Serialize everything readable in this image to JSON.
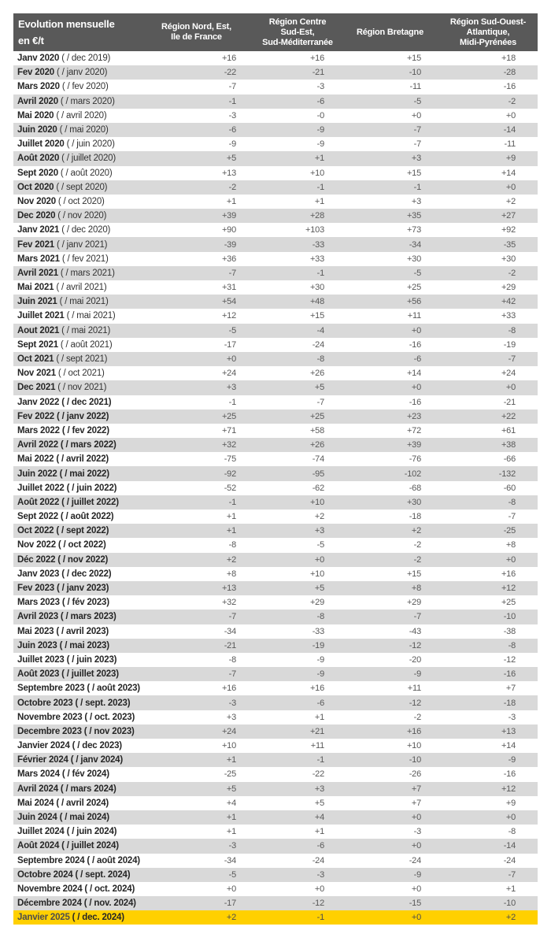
{
  "chart_data": {
    "type": "table",
    "title": "Evolution mensuelle en €/t",
    "corner_title": "Evolution mensuelle\nen €/t",
    "columns": [
      "Région Nord, Est,\nIle de France",
      "Région Centre\nSud-Est,\nSud-Méditerranée",
      "Région Bretagne",
      "Région Sud-Ouest-\nAtlantique,\nMidi-Pyrénées"
    ],
    "unit": "€/t",
    "rows": [
      {
        "month": "Janv 2020",
        "compare": "( / dec 2019)",
        "values": [
          "+16",
          "+16",
          "+15",
          "+18"
        ]
      },
      {
        "month": "Fev 2020",
        "compare": "( / janv 2020)",
        "values": [
          "-22",
          "-21",
          "-10",
          "-28"
        ]
      },
      {
        "month": "Mars 2020",
        "compare": "( / fev 2020)",
        "values": [
          "-7",
          "-3",
          "-11",
          "-16"
        ]
      },
      {
        "month": "Avril 2020",
        "compare": "( / mars 2020)",
        "values": [
          "-1",
          "-6",
          "-5",
          "-2"
        ]
      },
      {
        "month": "Mai 2020",
        "compare": "( / avril 2020)",
        "values": [
          "-3",
          "-0",
          "+0",
          "+0"
        ]
      },
      {
        "month": "Juin 2020",
        "compare": "( / mai 2020)",
        "values": [
          "-6",
          "-9",
          "-7",
          "-14"
        ]
      },
      {
        "month": "Juillet 2020",
        "compare": "( / juin 2020)",
        "values": [
          "-9",
          "-9",
          "-7",
          "-11"
        ]
      },
      {
        "month": "Août 2020",
        "compare": "( / juillet 2020)",
        "values": [
          "+5",
          "+1",
          "+3",
          "+9"
        ]
      },
      {
        "month": "Sept 2020",
        "compare": "( / août 2020)",
        "values": [
          "+13",
          "+10",
          "+15",
          "+14"
        ]
      },
      {
        "month": "Oct 2020",
        "compare": "( / sept 2020)",
        "values": [
          "-2",
          "-1",
          "-1",
          "+0"
        ]
      },
      {
        "month": "Nov 2020",
        "compare": "( / oct 2020)",
        "values": [
          "+1",
          "+1",
          "+3",
          "+2"
        ]
      },
      {
        "month": "Dec 2020",
        "compare": "( / nov 2020)",
        "values": [
          "+39",
          "+28",
          "+35",
          "+27"
        ]
      },
      {
        "month": "Janv 2021",
        "compare": "( / dec 2020)",
        "values": [
          "+90",
          "+103",
          "+73",
          "+92"
        ]
      },
      {
        "month": "Fev 2021",
        "compare": "( / janv 2021)",
        "values": [
          "-39",
          "-33",
          "-34",
          "-35"
        ]
      },
      {
        "month": "Mars 2021",
        "compare": "( / fev 2021)",
        "values": [
          "+36",
          "+33",
          "+30",
          "+30"
        ]
      },
      {
        "month": "Avril 2021",
        "compare": "( / mars 2021)",
        "values": [
          "-7",
          "-1",
          "-5",
          "-2"
        ]
      },
      {
        "month": "Mai 2021",
        "compare": "( / avril 2021)",
        "values": [
          "+31",
          "+30",
          "+25",
          "+29"
        ]
      },
      {
        "month": "Juin 2021",
        "compare": "( / mai 2021)",
        "values": [
          "+54",
          "+48",
          "+56",
          "+42"
        ]
      },
      {
        "month": "Juillet 2021",
        "compare": "( / mai 2021)",
        "values": [
          "+12",
          "+15",
          "+11",
          "+33"
        ]
      },
      {
        "month": "Aout 2021",
        "compare": "( / mai 2021)",
        "values": [
          "-5",
          "-4",
          "+0",
          "-8"
        ]
      },
      {
        "month": "Sept 2021",
        "compare": "( / août 2021)",
        "values": [
          "-17",
          "-24",
          "-16",
          "-19"
        ]
      },
      {
        "month": "Oct 2021",
        "compare": "( / sept 2021)",
        "values": [
          "+0",
          "-8",
          "-6",
          "-7"
        ]
      },
      {
        "month": "Nov 2021",
        "compare": "( / oct 2021)",
        "values": [
          "+24",
          "+26",
          "+14",
          "+24"
        ]
      },
      {
        "month": "Dec 2021",
        "compare": "( / nov 2021)",
        "values": [
          "+3",
          "+5",
          "+0",
          "+0"
        ]
      },
      {
        "month": "Janv 2022",
        "compare": "( / dec 2021)",
        "values": [
          "-1",
          "-7",
          "-16",
          "-21"
        ],
        "bold_full": true
      },
      {
        "month": "Fev 2022",
        "compare": "( / janv 2022)",
        "values": [
          "+25",
          "+25",
          "+23",
          "+22"
        ],
        "bold_full": true
      },
      {
        "month": "Mars 2022",
        "compare": "( / fev 2022)",
        "values": [
          "+71",
          "+58",
          "+72",
          "+61"
        ],
        "bold_full": true
      },
      {
        "month": "Avril 2022",
        "compare": "( / mars 2022)",
        "values": [
          "+32",
          "+26",
          "+39",
          "+38"
        ],
        "bold_full": true
      },
      {
        "month": "Mai 2022",
        "compare": "( / avril 2022)",
        "values": [
          "-75",
          "-74",
          "-76",
          "-66"
        ],
        "bold_full": true
      },
      {
        "month": "Juin 2022",
        "compare": "( / mai 2022)",
        "values": [
          "-92",
          "-95",
          "-102",
          "-132"
        ],
        "bold_full": true
      },
      {
        "month": "Juillet 2022",
        "compare": "( / juin 2022)",
        "values": [
          "-52",
          "-62",
          "-68",
          "-60"
        ],
        "bold_full": true
      },
      {
        "month": "Août 2022",
        "compare": "( / juillet 2022)",
        "values": [
          "-1",
          "+10",
          "+30",
          "-8"
        ],
        "bold_full": true
      },
      {
        "month": "Sept 2022",
        "compare": "( / août 2022)",
        "values": [
          "+1",
          "+2",
          "-18",
          "-7"
        ],
        "bold_full": true
      },
      {
        "month": "Oct 2022",
        "compare": "( / sept 2022)",
        "values": [
          "+1",
          "+3",
          "+2",
          "-25"
        ],
        "bold_full": true
      },
      {
        "month": "Nov 2022",
        "compare": "( / oct 2022)",
        "values": [
          "-8",
          "-5",
          "-2",
          "+8"
        ],
        "bold_full": true
      },
      {
        "month": "Déc 2022",
        "compare": "( / nov 2022)",
        "values": [
          "+2",
          "+0",
          "-2",
          "+0"
        ],
        "bold_full": true
      },
      {
        "month": "Janv 2023",
        "compare": "( / dec 2022)",
        "values": [
          "+8",
          "+10",
          "+15",
          "+16"
        ],
        "bold_full": true
      },
      {
        "month": "Fev 2023",
        "compare": "( / janv 2023)",
        "values": [
          "+13",
          "+5",
          "+8",
          "+12"
        ],
        "bold_full": true
      },
      {
        "month": "Mars 2023",
        "compare": "( / fév 2023)",
        "values": [
          "+32",
          "+29",
          "+29",
          "+25"
        ],
        "bold_full": true
      },
      {
        "month": "Avril 2023",
        "compare": "( / mars 2023)",
        "values": [
          "-7",
          "-8",
          "-7",
          "-10"
        ],
        "bold_full": true
      },
      {
        "month": "Mai 2023",
        "compare": "( / avril 2023)",
        "values": [
          "-34",
          "-33",
          "-43",
          "-38"
        ],
        "bold_full": true
      },
      {
        "month": "Juin 2023",
        "compare": "( / mai 2023)",
        "values": [
          "-21",
          "-19",
          "-12",
          "-8"
        ],
        "bold_full": true
      },
      {
        "month": "Juillet 2023",
        "compare": "( / juin 2023)",
        "values": [
          "-8",
          "-9",
          "-20",
          "-12"
        ],
        "bold_full": true
      },
      {
        "month": "Août 2023",
        "compare": "( / juillet 2023)",
        "values": [
          "-7",
          "-9",
          "-9",
          "-16"
        ],
        "bold_full": true
      },
      {
        "month": "Septembre 2023",
        "compare": "( / août 2023)",
        "values": [
          "+16",
          "+16",
          "+11",
          "+7"
        ],
        "bold_full": true
      },
      {
        "month": "Octobre 2023",
        "compare": "( / sept. 2023)",
        "values": [
          "-3",
          "-6",
          "-12",
          "-18"
        ],
        "bold_full": true
      },
      {
        "month": "Novembre 2023",
        "compare": "( / oct. 2023)",
        "values": [
          "+3",
          "+1",
          "-2",
          "-3"
        ],
        "bold_full": true
      },
      {
        "month": "Decembre 2023",
        "compare": "( / nov 2023)",
        "values": [
          "+24",
          "+21",
          "+16",
          "+13"
        ],
        "bold_full": true
      },
      {
        "month": "Janvier 2024",
        "compare": "( / dec 2023)",
        "values": [
          "+10",
          "+11",
          "+10",
          "+14"
        ],
        "bold_full": true
      },
      {
        "month": "Février 2024",
        "compare": "( / janv 2024)",
        "values": [
          "+1",
          "-1",
          "-10",
          "-9"
        ],
        "bold_full": true
      },
      {
        "month": "Mars 2024",
        "compare": "( / fév 2024)",
        "values": [
          "-25",
          "-22",
          "-26",
          "-16"
        ],
        "bold_full": true
      },
      {
        "month": "Avril 2024",
        "compare": "( / mars 2024)",
        "values": [
          "+5",
          "+3",
          "+7",
          "+12"
        ],
        "bold_full": true
      },
      {
        "month": "Mai 2024",
        "compare": "( / avril 2024)",
        "values": [
          "+4",
          "+5",
          "+7",
          "+9"
        ],
        "bold_full": true
      },
      {
        "month": "Juin 2024",
        "compare": "( / mai 2024)",
        "values": [
          "+1",
          "+4",
          "+0",
          "+0"
        ],
        "bold_full": true
      },
      {
        "month": "Juillet 2024",
        "compare": "( / juin 2024)",
        "values": [
          "+1",
          "+1",
          "-3",
          "-8"
        ],
        "bold_full": true
      },
      {
        "month": "Août 2024",
        "compare": "( / juillet 2024)",
        "values": [
          "-3",
          "-6",
          "+0",
          "-14"
        ],
        "bold_full": true
      },
      {
        "month": "Septembre 2024",
        "compare": "( / août 2024)",
        "values": [
          "-34",
          "-24",
          "-24",
          "-24"
        ],
        "bold_full": true
      },
      {
        "month": "Octobre 2024",
        "compare": "( / sept. 2024)",
        "values": [
          "-5",
          "-3",
          "-9",
          "-7"
        ],
        "bold_full": true
      },
      {
        "month": "Novembre 2024",
        "compare": "( / oct. 2024)",
        "values": [
          "+0",
          "+0",
          "+0",
          "+1"
        ],
        "bold_full": true
      },
      {
        "month": "Décembre 2024",
        "compare": "( / nov. 2024)",
        "values": [
          "-17",
          "-12",
          "-15",
          "-10"
        ],
        "bold_full": true
      },
      {
        "month": "Janvier 2025",
        "compare": "( / dec. 2024)",
        "values": [
          "+2",
          "-1",
          "+0",
          "+2"
        ],
        "bold_full": true,
        "highlight": true
      }
    ]
  },
  "colors": {
    "header_bg": "#595959",
    "header_text": "#FFFFFF",
    "alt_row_bg": "#D9D9D9",
    "row_bg": "#FFFFFF",
    "highlight_bg": "#FFD000",
    "label_text": "#262626",
    "value_text": "#595959"
  }
}
